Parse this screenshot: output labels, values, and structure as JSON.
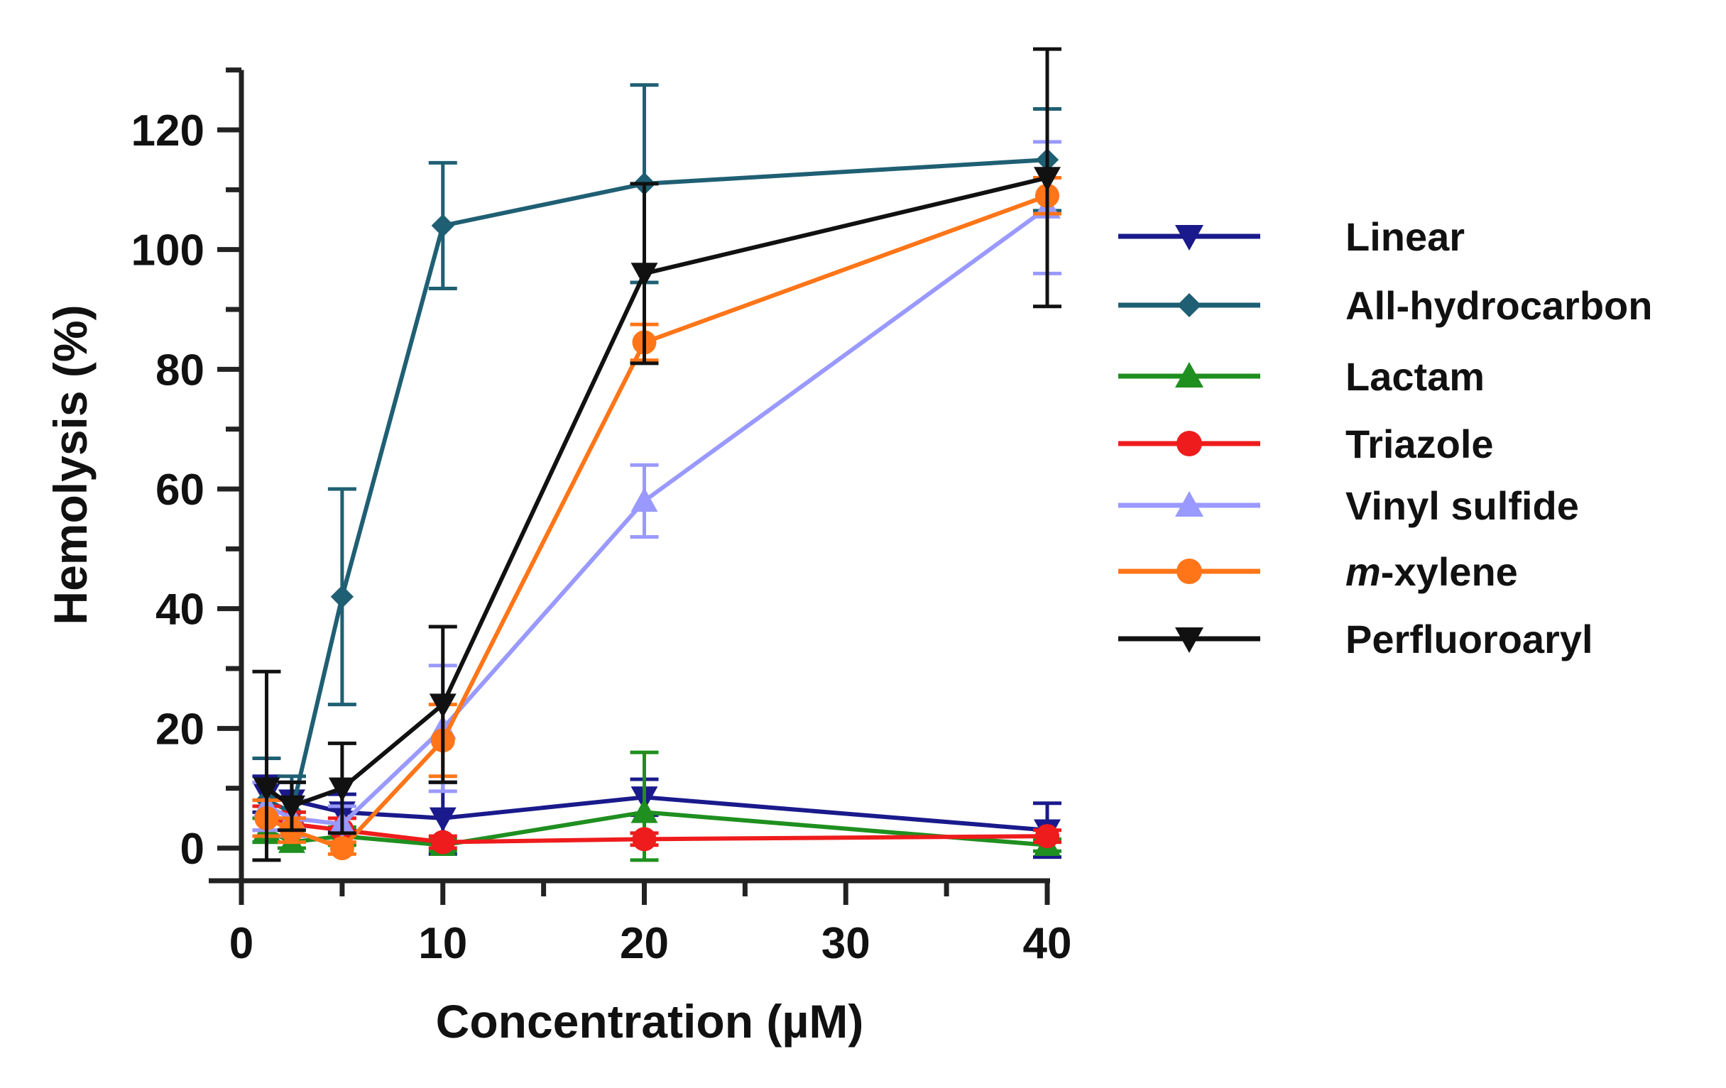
{
  "chart_data": {
    "type": "line",
    "title": "",
    "xlabel": "Concentration (µM)",
    "ylabel": "Hemolysis (%)",
    "xlim": [
      0,
      40
    ],
    "ylim": [
      0,
      130
    ],
    "x_ticks": [
      0,
      10,
      20,
      30,
      40
    ],
    "x_tick_labels": [
      "0",
      "10",
      "20",
      "30",
      "40"
    ],
    "y_ticks": [
      0,
      20,
      40,
      60,
      80,
      100,
      120
    ],
    "y_tick_labels": [
      "0",
      "20",
      "40",
      "60",
      "80",
      "100",
      "120"
    ],
    "grid": false,
    "legend_position": "right",
    "series": [
      {
        "name": "Linear",
        "color": "#1a1a8c",
        "marker": "triangle-down",
        "x": [
          1.25,
          2.5,
          5,
          10,
          20,
          40
        ],
        "values": [
          9,
          8,
          6,
          5,
          8.5,
          3
        ],
        "errors": [
          3,
          3,
          3,
          6,
          3,
          4.5
        ]
      },
      {
        "name": "All-hydrocarbon",
        "color": "#1f5f73",
        "marker": "diamond",
        "x": [
          1.25,
          2.5,
          5,
          10,
          20,
          40
        ],
        "values": [
          8,
          6,
          42,
          104,
          111,
          115
        ],
        "errors": [
          7,
          6,
          18,
          10.5,
          16.5,
          8.5
        ]
      },
      {
        "name": "Lactam",
        "color": "#1f8f1f",
        "marker": "triangle-up",
        "x": [
          1.25,
          2.5,
          5,
          10,
          20,
          40
        ],
        "values": [
          3,
          1,
          2,
          0.5,
          6,
          0.5
        ],
        "errors": [
          2,
          1,
          1.5,
          1,
          10,
          1
        ]
      },
      {
        "name": "Triazole",
        "color": "#ee1c1c",
        "marker": "circle",
        "x": [
          1.25,
          2.5,
          5,
          10,
          20,
          40
        ],
        "values": [
          5,
          4,
          3,
          1,
          1.5,
          2
        ],
        "errors": [
          2,
          2,
          2,
          1,
          1,
          1
        ]
      },
      {
        "name": "Vinyl sulfide",
        "color": "#9999ff",
        "marker": "triangle-up",
        "x": [
          1.25,
          2.5,
          5,
          10,
          20,
          40
        ],
        "values": [
          7,
          5,
          4,
          20,
          58,
          107
        ],
        "errors": [
          4,
          3,
          3,
          10.5,
          6,
          11
        ]
      },
      {
        "name": "m-xylene",
        "color": "#ff7518",
        "marker": "circle",
        "x": [
          1.25,
          2.5,
          5,
          10,
          20,
          40
        ],
        "values": [
          5,
          3,
          0,
          18,
          84.5,
          109
        ],
        "errors": [
          3,
          2,
          1,
          6,
          3,
          3
        ]
      },
      {
        "name": "Perfluoroaryl",
        "color": "#111111",
        "marker": "triangle-down",
        "x": [
          1.25,
          2.5,
          5,
          10,
          20,
          40
        ],
        "values": [
          10,
          7,
          10,
          24,
          96,
          112
        ],
        "errors": [
          19.5,
          4,
          7.5,
          13,
          15,
          21.5
        ]
      }
    ],
    "legend": {
      "items": [
        {
          "label": "Linear"
        },
        {
          "label": "All-hydrocarbon"
        },
        {
          "label": "Lactam"
        },
        {
          "label": "Triazole"
        },
        {
          "label": "Vinyl sulfide"
        },
        {
          "label_italic": "m",
          "label_rest": "-xylene"
        },
        {
          "label": "Perfluoroaryl"
        }
      ]
    }
  }
}
